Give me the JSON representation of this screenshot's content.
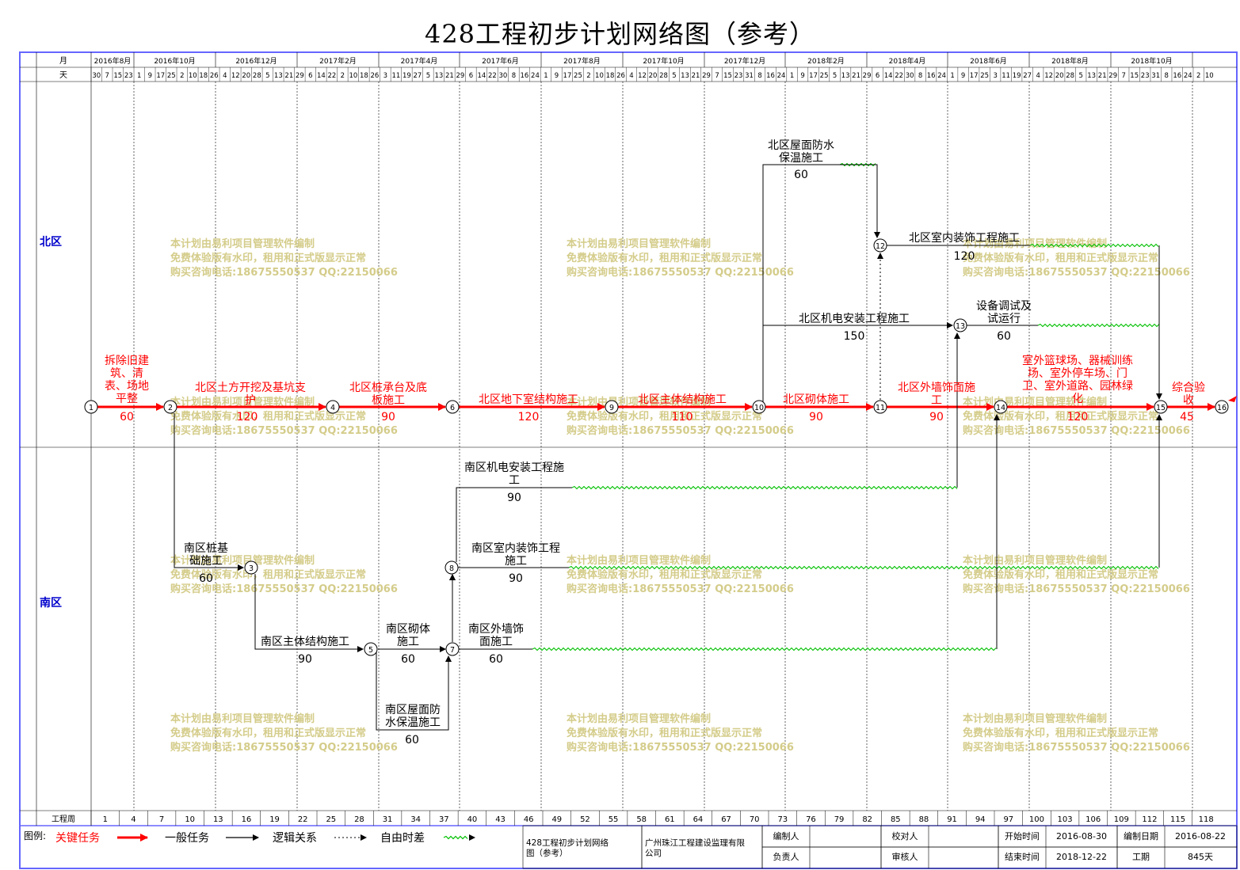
{
  "title": "428工程初步计划网络图（参考）",
  "header": {
    "month_label": "月",
    "day_label": "天",
    "months": [
      "2016年8月",
      "2016年10月",
      "2016年12月",
      "2017年2月",
      "2017年4月",
      "2017年6月",
      "2017年8月",
      "2017年10月",
      "2017年12月",
      "2018年2月",
      "2018年4月",
      "2018年6月",
      "2018年8月",
      "2018年10月"
    ],
    "days": [
      "30",
      "7",
      "15",
      "23",
      "1",
      "9",
      "17",
      "25",
      "2",
      "10",
      "18",
      "26",
      "4",
      "12",
      "20",
      "28",
      "5",
      "13",
      "21",
      "29",
      "6",
      "14",
      "22",
      "2",
      "10",
      "18",
      "26",
      "3",
      "11",
      "19",
      "27",
      "5",
      "13",
      "21",
      "29",
      "6",
      "14",
      "22",
      "30",
      "8",
      "16",
      "24",
      "1",
      "9",
      "17",
      "25",
      "2",
      "10",
      "18",
      "26",
      "4",
      "12",
      "20",
      "28",
      "5",
      "13",
      "21",
      "29",
      "7",
      "15",
      "23",
      "31",
      "8",
      "16",
      "24",
      "1",
      "9",
      "17",
      "25",
      "5",
      "13",
      "21",
      "29",
      "6",
      "14",
      "22",
      "30",
      "8",
      "16",
      "24",
      "1",
      "9",
      "17",
      "25",
      "3",
      "11",
      "19",
      "27",
      "4",
      "12",
      "20",
      "28",
      "5",
      "13",
      "21",
      "29",
      "7",
      "15",
      "23",
      "31",
      "8",
      "16",
      "24",
      "2",
      "10"
    ]
  },
  "lanes": {
    "north": "北区",
    "south": "南区"
  },
  "weeks_label": "工程周",
  "weeks": [
    "1",
    "4",
    "7",
    "10",
    "13",
    "16",
    "19",
    "22",
    "25",
    "28",
    "31",
    "34",
    "37",
    "40",
    "43",
    "46",
    "49",
    "52",
    "55",
    "58",
    "61",
    "64",
    "67",
    "70",
    "73",
    "76",
    "79",
    "82",
    "85",
    "88",
    "91",
    "94",
    "97",
    "100",
    "103",
    "106",
    "109",
    "112",
    "115",
    "118"
  ],
  "tasks": [
    {
      "name": "拆除旧建筑、清表、场地平整",
      "duration": "60",
      "critical": true
    },
    {
      "name": "北区土方开挖及基坑支护",
      "duration": "120",
      "critical": true
    },
    {
      "name": "北区桩承台及底板施工",
      "duration": "90",
      "critical": true
    },
    {
      "name": "北区地下室结构施工",
      "duration": "120",
      "critical": true
    },
    {
      "name": "北区主体结构施工",
      "duration": "110",
      "critical": true
    },
    {
      "name": "北区砌体施工",
      "duration": "90",
      "critical": true
    },
    {
      "name": "北区外墙饰面施工",
      "duration": "90",
      "critical": true
    },
    {
      "name": "室外篮球场、器械训练场、室外停车场、门卫、室外道路、园林绿化",
      "duration": "120",
      "critical": true
    },
    {
      "name": "综合验收",
      "duration": "45",
      "critical": true
    },
    {
      "name": "北区屋面防水保温施工",
      "duration": "60",
      "critical": false
    },
    {
      "name": "北区室内装饰工程施工",
      "duration": "120",
      "critical": false
    },
    {
      "name": "北区机电安装工程施工",
      "duration": "150",
      "critical": false
    },
    {
      "name": "设备调试及试运行",
      "duration": "60",
      "critical": false
    },
    {
      "name": "南区桩基础施工",
      "duration": "60",
      "critical": false
    },
    {
      "name": "南区主体结构施工",
      "duration": "90",
      "critical": false
    },
    {
      "name": "南区砌体施工",
      "duration": "60",
      "critical": false
    },
    {
      "name": "南区屋面防水保温施工",
      "duration": "60",
      "critical": false
    },
    {
      "name": "南区机电安装工程施工",
      "duration": "90",
      "critical": false
    },
    {
      "name": "南区室内装饰工程施工",
      "duration": "90",
      "critical": false
    },
    {
      "name": "南区外墙饰面施工",
      "duration": "60",
      "critical": false
    }
  ],
  "nodes": [
    "1",
    "2",
    "3",
    "4",
    "5",
    "6",
    "7",
    "8",
    "9",
    "10",
    "11",
    "12",
    "13",
    "14",
    "15",
    "16"
  ],
  "watermark": [
    "本计划由易利项目管理软件编制",
    "免费体验版有水印，租用和正式版显示正常",
    "购买咨询电话:18675550537 QQ:22150066"
  ],
  "legend": {
    "label": "图例:",
    "critical": "关键任务",
    "general": "一般任务",
    "logic": "逻辑关系",
    "float": "自由时差"
  },
  "colors": {
    "critical": "#ff0000",
    "general": "#000000",
    "float": "#00c000",
    "frame": "#6666ff",
    "lane_label": "#0000cc",
    "watermark": "#d4cc8a"
  },
  "footer": {
    "chart_name": "428工程初步计划网络图（参考）",
    "company": "广州珠江工程建设监理有限公司",
    "compiler_label": "编制人",
    "checker_label": "校对人",
    "manager_label": "负责人",
    "reviewer_label": "审核人",
    "start_label": "开始时间",
    "start_value": "2016-08-30",
    "end_label": "结束时间",
    "end_value": "2018-12-22",
    "date_label": "编制日期",
    "date_value": "2016-08-22",
    "period_label": "工期",
    "period_value": "845天"
  }
}
